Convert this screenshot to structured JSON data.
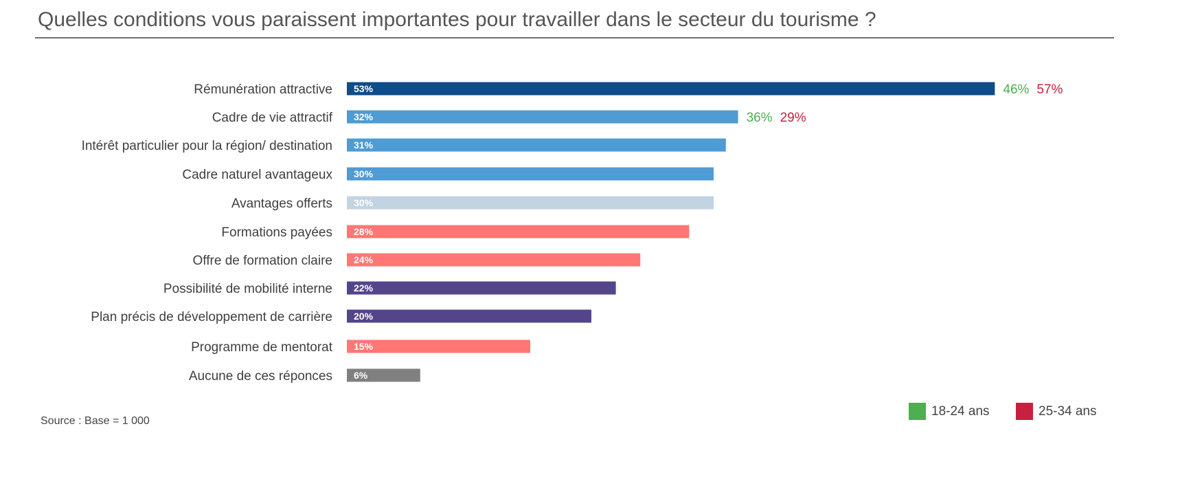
{
  "title": "Quelles conditions vous paraissent importantes pour travailler dans le secteur du tourisme ?",
  "source": "Source : Base = 1 000",
  "legend": [
    {
      "label": "18-24 ans",
      "color": "#4caf50"
    },
    {
      "label": "25-34 ans",
      "color": "#c8203f"
    }
  ],
  "chart_data": {
    "type": "bar",
    "orientation": "horizontal",
    "title": "Quelles conditions vous paraissent importantes pour travailler dans le secteur du tourisme ?",
    "categories": [
      "Rémunération attractive",
      "Cadre de vie attractif",
      "Intérêt particulier pour la région/ destination",
      "Cadre naturel avantageux",
      "Avantages offerts",
      "Formations payées",
      "Offre de formation claire",
      "Possibilité de mobilité interne",
      "Plan précis de développement de carrière",
      "Programme de mentorat",
      "Aucune de ces réponces"
    ],
    "values": [
      53,
      32,
      31,
      30,
      30,
      28,
      24,
      22,
      20,
      15,
      6
    ],
    "value_labels": [
      "53%",
      "32%",
      "31%",
      "30%",
      "30%",
      "28%",
      "24%",
      "22%",
      "20%",
      "15%",
      "6%"
    ],
    "bar_colors": [
      "#0f4c8a",
      "#4f9bd4",
      "#4f9bd4",
      "#4f9bd4",
      "#c2d3e2",
      "#ff7675",
      "#ff7675",
      "#54458b",
      "#54458b",
      "#ff7675",
      "#808080"
    ],
    "value_label_colors": [
      "#ffffff",
      "#ffffff",
      "#ffffff",
      "#ffffff",
      "#ffffff",
      "#ffffff",
      "#ffffff",
      "#ffffff",
      "#ffffff",
      "#ffffff",
      "#ffffff"
    ],
    "age_breakdown": [
      {
        "category": "Rémunération attractive",
        "18-24 ans": "46%",
        "25-34 ans": "57%"
      },
      {
        "category": "Cadre de vie attractif",
        "18-24 ans": "36%",
        "25-34 ans": "29%"
      }
    ],
    "grid": false,
    "legend_position": "bottom-right"
  }
}
